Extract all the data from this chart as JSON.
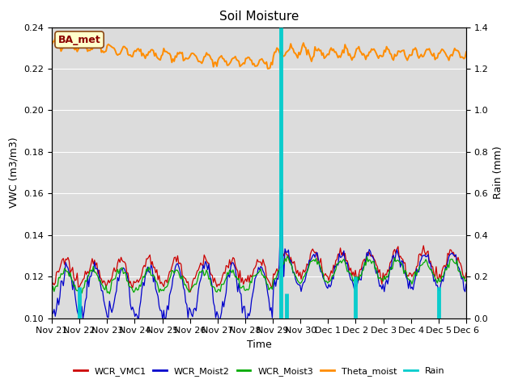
{
  "title": "Soil Moisture",
  "ylabel_left": "VWC (m3/m3)",
  "ylabel_right": "Rain (mm)",
  "xlabel": "Time",
  "site_label": "BA_met",
  "ylim_left": [
    0.1,
    0.24
  ],
  "ylim_right": [
    0.0,
    1.4
  ],
  "yticks_left": [
    0.1,
    0.12,
    0.14,
    0.16,
    0.18,
    0.2,
    0.22,
    0.24
  ],
  "yticks_right": [
    0.0,
    0.2,
    0.4,
    0.6,
    0.8,
    1.0,
    1.2,
    1.4
  ],
  "colors": {
    "WCR_VMC1": "#cc0000",
    "WCR_Moist2": "#0000cc",
    "WCR_Moist3": "#00aa00",
    "Theta_moist": "#ff8c00",
    "Rain": "#00cccc"
  },
  "bg_color": "#dcdcdc",
  "grid_color": "#ffffff",
  "title_fontsize": 11,
  "label_fontsize": 9,
  "tick_fontsize": 8,
  "xtick_labels": [
    "Nov 21",
    "Nov 22",
    "Nov 23",
    "Nov 24",
    "Nov 25",
    "Nov 26",
    "Nov 27",
    "Nov 28",
    "Nov 29",
    "Nov 30",
    "Dec 1",
    "Dec 2",
    "Dec 3",
    "Dec 4",
    "Dec 5",
    "Dec 6"
  ]
}
